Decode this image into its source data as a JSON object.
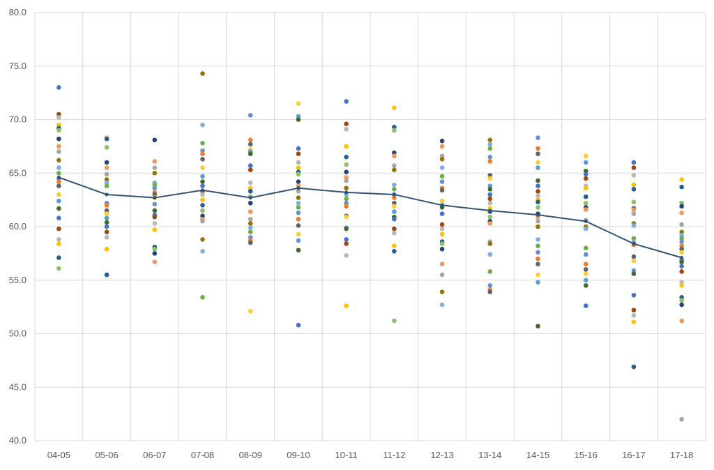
{
  "chart_data": {
    "type": "scatter",
    "title": "",
    "xlabel": "",
    "ylabel": "",
    "ylim": [
      40,
      80
    ],
    "yticks": [
      "40.0",
      "45.0",
      "50.0",
      "55.0",
      "60.0",
      "65.0",
      "70.0",
      "75.0",
      "80.0"
    ],
    "categories": [
      "04-05",
      "05-06",
      "06-07",
      "07-08",
      "08-09",
      "09-10",
      "10-11",
      "11-12",
      "12-13",
      "13-14",
      "14-15",
      "15-16",
      "16-17",
      "17-18"
    ],
    "grid": "vertical-and-horizontal",
    "legend": "none",
    "point_colors": [
      "#4472c4",
      "#ed7d31",
      "#a5a5a5",
      "#ffc000",
      "#5b9bd5",
      "#70ad47",
      "#264478",
      "#9e480e",
      "#636363",
      "#997300",
      "#255e91",
      "#43682b",
      "#698ed0",
      "#f1975a",
      "#b7b7b7",
      "#ffcd33",
      "#7cafdd",
      "#8cc168"
    ],
    "points": [
      [
        73.0,
        70.5,
        70.2,
        69.5,
        69.2,
        69.0,
        68.2,
        67.5,
        67.0,
        66.2,
        65.5,
        65.0,
        64.5,
        64.2,
        63.8,
        63.0,
        62.4,
        61.7,
        60.8,
        59.8,
        58.8,
        58.4,
        57.1,
        56.1
      ],
      [
        68.3,
        68.2,
        67.4,
        66.0,
        65.5,
        64.9,
        64.4,
        64.1,
        63.8,
        62.2,
        62.0,
        61.5,
        61.2,
        60.8,
        60.4,
        60.0,
        59.5,
        59.0,
        57.9,
        55.5
      ],
      [
        68.1,
        66.1,
        65.5,
        65.0,
        64.1,
        63.9,
        63.6,
        63.2,
        63.0,
        62.7,
        62.1,
        61.5,
        61.1,
        60.9,
        60.3,
        59.7,
        58.1,
        57.9,
        57.5,
        56.7
      ],
      [
        74.3,
        69.5,
        67.8,
        67.1,
        66.8,
        66.3,
        65.5,
        64.7,
        64.2,
        63.8,
        63.3,
        63.0,
        62.5,
        62.0,
        61.5,
        61.0,
        60.7,
        60.5,
        58.8,
        57.7,
        53.4
      ],
      [
        70.4,
        68.1,
        67.7,
        67.2,
        67.0,
        66.8,
        65.7,
        65.3,
        64.1,
        63.6,
        63.3,
        62.8,
        62.2,
        61.4,
        60.7,
        60.3,
        59.9,
        59.5,
        59.0,
        58.7,
        58.5,
        52.1
      ],
      [
        71.5,
        70.3,
        70.0,
        67.3,
        66.8,
        66.0,
        65.5,
        65.1,
        64.9,
        64.2,
        63.8,
        63.3,
        62.7,
        62.2,
        61.8,
        61.3,
        60.7,
        60.1,
        59.3,
        58.7,
        57.8,
        50.8
      ],
      [
        71.7,
        69.6,
        69.1,
        67.5,
        66.5,
        65.8,
        65.1,
        64.6,
        64.3,
        63.6,
        63.0,
        62.6,
        62.2,
        61.9,
        61.0,
        60.9,
        59.9,
        59.8,
        58.8,
        58.4,
        57.3,
        52.6
      ],
      [
        71.1,
        69.3,
        69.0,
        66.9,
        66.6,
        65.7,
        65.3,
        63.9,
        63.5,
        63.0,
        62.7,
        62.2,
        61.9,
        61.4,
        60.9,
        60.7,
        59.8,
        59.4,
        58.2,
        57.7,
        51.2
      ],
      [
        68.0,
        67.5,
        66.6,
        66.3,
        65.5,
        64.7,
        64.2,
        63.6,
        63.4,
        62.4,
        62.0,
        61.8,
        61.2,
        60.2,
        59.8,
        59.3,
        58.6,
        58.4,
        57.9,
        56.5,
        55.5,
        53.9,
        52.7
      ],
      [
        68.1,
        67.7,
        67.3,
        66.5,
        66.1,
        64.8,
        64.5,
        63.8,
        63.5,
        63.0,
        62.6,
        62.2,
        61.7,
        61.4,
        60.9,
        60.5,
        60.3,
        58.6,
        58.4,
        57.4,
        55.8,
        54.5,
        54.1,
        53.9
      ],
      [
        68.3,
        67.3,
        66.8,
        66.0,
        65.5,
        64.3,
        63.8,
        63.3,
        62.9,
        62.5,
        62.3,
        61.8,
        61.2,
        60.9,
        60.5,
        60.0,
        58.8,
        58.2,
        57.6,
        57.0,
        56.5,
        55.5,
        54.8,
        50.7
      ],
      [
        66.6,
        66.0,
        65.2,
        64.9,
        64.5,
        63.8,
        63.6,
        62.8,
        62.2,
        61.8,
        61.6,
        60.6,
        60.0,
        59.8,
        58.0,
        57.4,
        56.5,
        56.0,
        55.6,
        55.0,
        54.5,
        52.6
      ],
      [
        66.0,
        65.5,
        64.8,
        63.9,
        63.5,
        62.3,
        61.7,
        61.6,
        61.2,
        60.3,
        60.1,
        58.9,
        58.5,
        58.3,
        57.2,
        56.8,
        55.9,
        55.6,
        53.6,
        52.2,
        51.7,
        51.1,
        46.9
      ],
      [
        64.4,
        63.7,
        62.2,
        61.9,
        61.3,
        60.2,
        59.5,
        59.2,
        58.9,
        58.6,
        58.2,
        57.9,
        57.6,
        56.9,
        56.7,
        56.3,
        55.8,
        54.8,
        54.5,
        53.4,
        53.1,
        52.7,
        51.2,
        42.0
      ]
    ],
    "series": [
      {
        "type": "line",
        "color": "#2f5476",
        "values": [
          64.6,
          63.0,
          62.7,
          63.4,
          62.7,
          63.6,
          63.2,
          63.0,
          62.0,
          61.5,
          61.1,
          60.5,
          58.4,
          57.1
        ]
      }
    ]
  }
}
